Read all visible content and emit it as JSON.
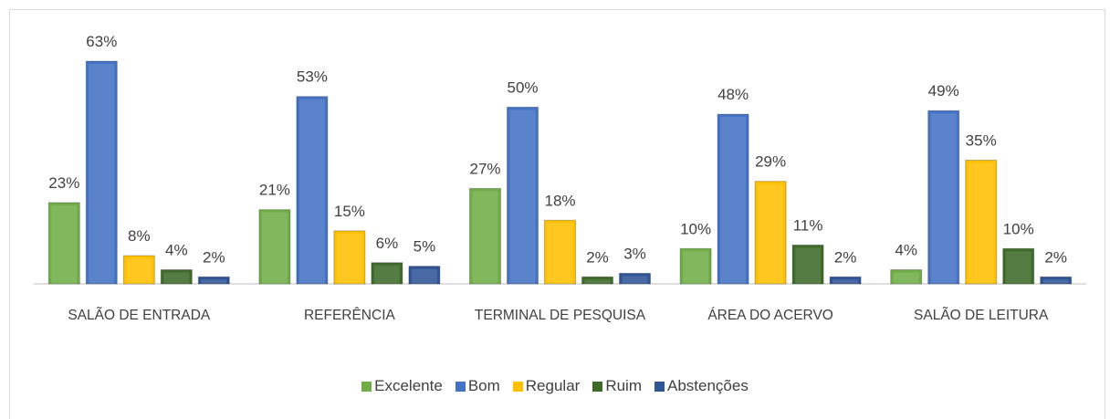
{
  "chart_data": {
    "type": "bar",
    "categories": [
      "SALÃO DE ENTRADA",
      "REFERÊNCIA",
      "TERMINAL DE PESQUISA",
      "ÁREA DO ACERVO",
      "SALÃO DE LEITURA"
    ],
    "series": [
      {
        "name": "Excelente",
        "color": "#70ad47",
        "values": [
          23,
          21,
          27,
          10,
          4
        ],
        "value_labels": [
          "23%",
          "21%",
          "27%",
          "10%",
          "4%"
        ]
      },
      {
        "name": "Bom",
        "color": "#4472c4",
        "values": [
          63,
          53,
          50,
          48,
          49
        ],
        "value_labels": [
          "63%",
          "53%",
          "50%",
          "48%",
          "49%"
        ]
      },
      {
        "name": "Regular",
        "color": "#ffc000",
        "values": [
          8,
          15,
          18,
          29,
          35
        ],
        "value_labels": [
          "8%",
          "15%",
          "18%",
          "29%",
          "35%"
        ]
      },
      {
        "name": "Ruim",
        "color": "#3e6b2a",
        "values": [
          4,
          6,
          2,
          11,
          10
        ],
        "value_labels": [
          "4%",
          "6%",
          "2%",
          "11%",
          "10%"
        ]
      },
      {
        "name": "Abstenções",
        "color": "#2f5597",
        "values": [
          2,
          5,
          3,
          2,
          2
        ],
        "value_labels": [
          "2%",
          "5%",
          "3%",
          "2%",
          "2%"
        ]
      }
    ],
    "legend": "bottom"
  }
}
